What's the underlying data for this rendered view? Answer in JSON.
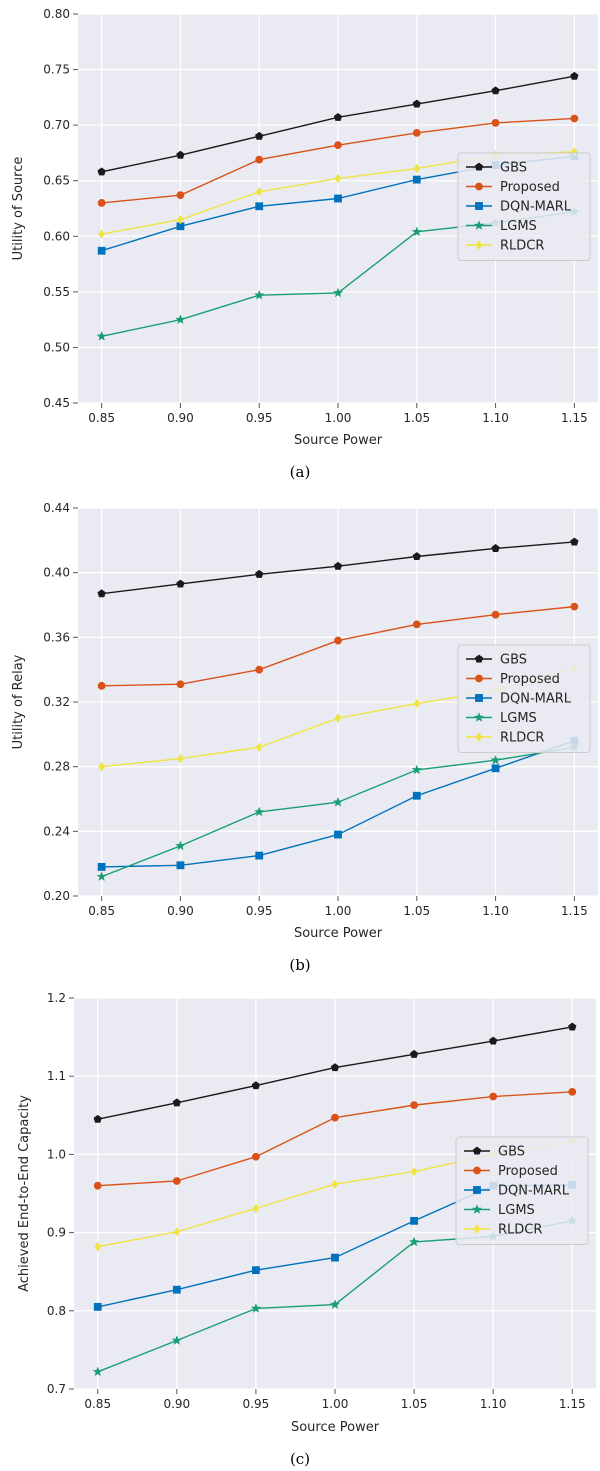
{
  "colors": {
    "background": "#eaeaf2",
    "grid": "#ffffff",
    "series": {
      "GBS": "#1a1a1a",
      "Proposed": "#d95319",
      "DQN-MARL": "#0072bd",
      "LGMS": "#1a9e77",
      "RLDCR": "#f0e442"
    }
  },
  "chart_data": [
    {
      "type": "line",
      "caption": "(a)",
      "title": "",
      "xlabel": "Source Power",
      "ylabel": "Utility of Source",
      "x": [
        0.85,
        0.9,
        0.95,
        1.0,
        1.05,
        1.1,
        1.15
      ],
      "xticks": [
        "0.85",
        "0.90",
        "0.95",
        "1.00",
        "1.05",
        "1.10",
        "1.15"
      ],
      "xlim": [
        0.835,
        1.165
      ],
      "ylim": [
        0.45,
        0.8
      ],
      "yticks": [
        "0.45",
        "0.50",
        "0.55",
        "0.60",
        "0.65",
        "0.70",
        "0.75",
        "0.80"
      ],
      "grid": true,
      "legend": "center-right",
      "series": [
        {
          "name": "GBS",
          "marker": "pentagon",
          "values": [
            0.658,
            0.673,
            0.69,
            0.707,
            0.719,
            0.731,
            0.744
          ]
        },
        {
          "name": "Proposed",
          "marker": "circle",
          "values": [
            0.63,
            0.637,
            0.669,
            0.682,
            0.693,
            0.702,
            0.706
          ]
        },
        {
          "name": "DQN-MARL",
          "marker": "square",
          "values": [
            0.587,
            0.609,
            0.627,
            0.634,
            0.651,
            0.664,
            0.672
          ]
        },
        {
          "name": "LGMS",
          "marker": "star",
          "values": [
            0.51,
            0.525,
            0.547,
            0.549,
            0.604,
            0.612,
            0.622
          ]
        },
        {
          "name": "RLDCR",
          "marker": "diamond",
          "values": [
            0.602,
            0.615,
            0.64,
            0.652,
            0.661,
            0.673,
            0.676
          ]
        }
      ]
    },
    {
      "type": "line",
      "caption": "(b)",
      "title": "",
      "xlabel": "Source Power",
      "ylabel": "Utility of Relay",
      "x": [
        0.85,
        0.9,
        0.95,
        1.0,
        1.05,
        1.1,
        1.15
      ],
      "xticks": [
        "0.85",
        "0.90",
        "0.95",
        "1.00",
        "1.05",
        "1.10",
        "1.15"
      ],
      "xlim": [
        0.835,
        1.165
      ],
      "ylim": [
        0.2,
        0.44
      ],
      "yticks": [
        "0.20",
        "0.24",
        "0.28",
        "0.32",
        "0.36",
        "0.40",
        "0.44"
      ],
      "grid": true,
      "legend": "center-right",
      "series": [
        {
          "name": "GBS",
          "marker": "pentagon",
          "values": [
            0.387,
            0.393,
            0.399,
            0.404,
            0.41,
            0.415,
            0.419
          ]
        },
        {
          "name": "Proposed",
          "marker": "circle",
          "values": [
            0.33,
            0.331,
            0.34,
            0.358,
            0.368,
            0.374,
            0.379
          ]
        },
        {
          "name": "DQN-MARL",
          "marker": "square",
          "values": [
            0.218,
            0.219,
            0.225,
            0.238,
            0.262,
            0.279,
            0.296
          ]
        },
        {
          "name": "LGMS",
          "marker": "star",
          "values": [
            0.212,
            0.231,
            0.252,
            0.258,
            0.278,
            0.284,
            0.292
          ]
        },
        {
          "name": "RLDCR",
          "marker": "diamond",
          "values": [
            0.28,
            0.285,
            0.292,
            0.31,
            0.319,
            0.327,
            0.341
          ]
        }
      ]
    },
    {
      "type": "line",
      "caption": "(c)",
      "title": "",
      "xlabel": "Source Power",
      "ylabel": "Achieved End-to-End Capacity",
      "x": [
        0.85,
        0.9,
        0.95,
        1.0,
        1.05,
        1.1,
        1.15
      ],
      "xticks": [
        "0.85",
        "0.90",
        "0.95",
        "1.00",
        "1.05",
        "1.10",
        "1.15"
      ],
      "xlim": [
        0.835,
        1.165
      ],
      "ylim": [
        0.7,
        1.2
      ],
      "yticks": [
        "0.7",
        "0.8",
        "0.9",
        "1.0",
        "1.1",
        "1.2"
      ],
      "grid": true,
      "legend": "center-right",
      "series": [
        {
          "name": "GBS",
          "marker": "pentagon",
          "values": [
            1.045,
            1.066,
            1.088,
            1.111,
            1.128,
            1.145,
            1.163
          ]
        },
        {
          "name": "Proposed",
          "marker": "circle",
          "values": [
            0.96,
            0.966,
            0.997,
            1.047,
            1.063,
            1.074,
            1.08
          ]
        },
        {
          "name": "DQN-MARL",
          "marker": "square",
          "values": [
            0.805,
            0.827,
            0.852,
            0.868,
            0.915,
            0.96,
            0.961
          ]
        },
        {
          "name": "LGMS",
          "marker": "star",
          "values": [
            0.722,
            0.762,
            0.803,
            0.808,
            0.888,
            0.895,
            0.915
          ]
        },
        {
          "name": "RLDCR",
          "marker": "diamond",
          "values": [
            0.882,
            0.901,
            0.931,
            0.962,
            0.978,
            1.0,
            1.017
          ]
        }
      ]
    }
  ]
}
